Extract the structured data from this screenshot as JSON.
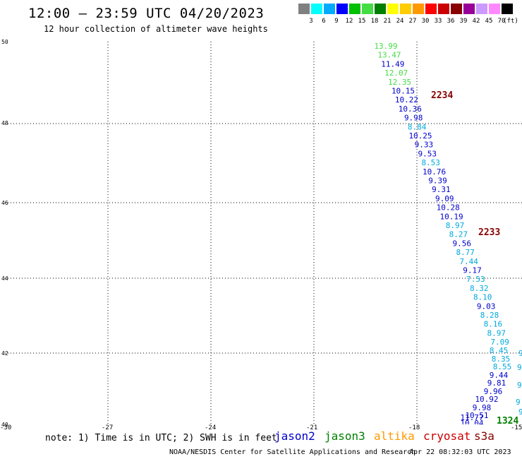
{
  "header": {
    "title": "12:00 – 23:59 UTC 04/20/2023",
    "subtitle": "12 hour collection of altimeter wave heights"
  },
  "scale": {
    "unit": "(ft)",
    "colors": [
      "#808080",
      "#00ffff",
      "#00aaff",
      "#0000ff",
      "#00c000",
      "#44dd44",
      "#008000",
      "#ffff00",
      "#ffcc00",
      "#ff9900",
      "#ff0000",
      "#cc0000",
      "#880000",
      "#990099",
      "#cc99ff",
      "#ff88ff",
      "#000000"
    ],
    "labels": [
      "3",
      "6",
      "9",
      "12",
      "15",
      "18",
      "21",
      "24",
      "27",
      "30",
      "33",
      "36",
      "39",
      "42",
      "45",
      "70"
    ]
  },
  "axes": {
    "lat_ticks": [
      "50",
      "48",
      "46",
      "44",
      "42",
      "40"
    ],
    "lon_ticks": [
      "-30",
      "-27",
      "-24",
      "-21",
      "-18",
      "-15"
    ]
  },
  "wave_points": [
    {
      "v": "13.99",
      "c": "#44dd44"
    },
    {
      "v": "13.47",
      "c": "#44dd44"
    },
    {
      "v": "11.49",
      "c": "#0000cc"
    },
    {
      "v": "12.07",
      "c": "#44dd44"
    },
    {
      "v": "12.35",
      "c": "#44dd44"
    },
    {
      "v": "10.15",
      "c": "#0000cc"
    },
    {
      "v": "10.22",
      "c": "#0000cc"
    },
    {
      "v": "10.36",
      "c": "#0000cc"
    },
    {
      "v": "9.98",
      "c": "#0000cc"
    },
    {
      "v": "8.84",
      "c": "#00aadd"
    },
    {
      "v": "10.25",
      "c": "#0000cc"
    },
    {
      "v": "9.33",
      "c": "#0000cc"
    },
    {
      "v": "9.53",
      "c": "#0000cc"
    },
    {
      "v": "8.53",
      "c": "#00aadd"
    },
    {
      "v": "10.76",
      "c": "#0000cc"
    },
    {
      "v": "9.39",
      "c": "#0000cc"
    },
    {
      "v": "9.31",
      "c": "#0000cc"
    },
    {
      "v": "9.09",
      "c": "#0000cc"
    },
    {
      "v": "10.28",
      "c": "#0000cc"
    },
    {
      "v": "10.19",
      "c": "#0000cc"
    },
    {
      "v": "8.97",
      "c": "#00aadd"
    },
    {
      "v": "8.27",
      "c": "#00aadd"
    },
    {
      "v": "9.56",
      "c": "#0000cc"
    },
    {
      "v": "8.77",
      "c": "#00aadd"
    },
    {
      "v": "7.44",
      "c": "#00aadd"
    },
    {
      "v": "9.17",
      "c": "#0000cc"
    },
    {
      "v": "7.53",
      "c": "#00aadd"
    },
    {
      "v": "8.32",
      "c": "#00aadd"
    },
    {
      "v": "8.10",
      "c": "#00aadd"
    },
    {
      "v": "9.03",
      "c": "#0000cc"
    },
    {
      "v": "8.28",
      "c": "#00aadd"
    },
    {
      "v": "8.16",
      "c": "#00aadd"
    },
    {
      "v": "8.97",
      "c": "#00aadd"
    },
    {
      "v": "7.09",
      "c": "#00aadd"
    },
    {
      "v": "8.45",
      "c": "#00aadd"
    },
    {
      "v": "8.35",
      "c": "#00aadd"
    },
    {
      "v": "8.55",
      "c": "#00aadd"
    },
    {
      "v": "9.44",
      "c": "#0000cc"
    },
    {
      "v": "9.81",
      "c": "#0000cc"
    },
    {
      "v": "9.96",
      "c": "#0000cc"
    },
    {
      "v": "10.92",
      "c": "#0000cc"
    },
    {
      "v": "9.98",
      "c": "#0000cc"
    },
    {
      "v": "10.51",
      "c": "#0000cc"
    },
    {
      "v": "10.04",
      "c": "#0000cc"
    },
    {
      "v": "11.77",
      "c": "#0000cc"
    }
  ],
  "pass_labels": [
    {
      "v": "2234",
      "c": "#880000"
    },
    {
      "v": "2233",
      "c": "#880000"
    },
    {
      "v": "1324",
      "c": "#008000"
    }
  ],
  "note": "note: 1) Time is in UTC; 2) SWH is in feet",
  "satellites": [
    {
      "name": "jason2",
      "c": "#0000cc"
    },
    {
      "name": "jason3",
      "c": "#008000"
    },
    {
      "name": "altika",
      "c": "#ff9900"
    },
    {
      "name": "cryosat",
      "c": "#cc0000"
    },
    {
      "name": "s3a",
      "c": "#880000"
    }
  ],
  "footer": {
    "credit": "NOAA/NESDIS Center for Satellite Applications and Research",
    "timestamp": "Apr 22 08:32:03 UTC 2023"
  }
}
